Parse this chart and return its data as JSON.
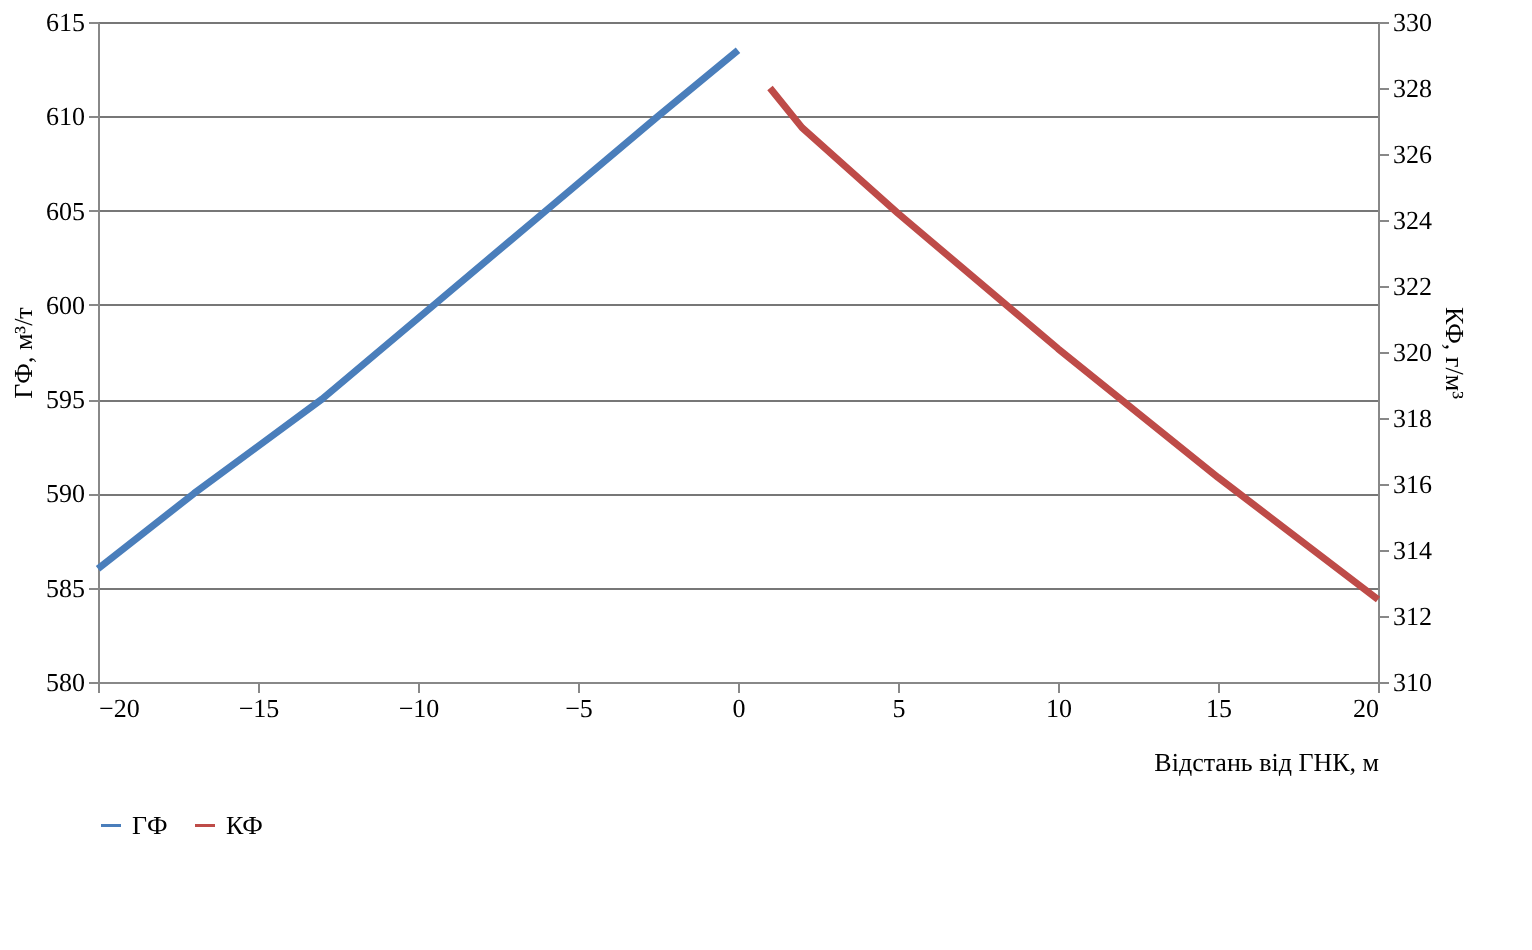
{
  "chart_data": {
    "type": "line",
    "xlabel": "Відстань  від ГНК, м",
    "ylabel": "ГФ, м³/т",
    "y2label": "КФ, г/м³",
    "xlim": [
      -20,
      20
    ],
    "xticks": [
      -20,
      -15,
      -10,
      -5,
      0,
      5,
      10,
      15,
      20
    ],
    "ylim": [
      580,
      615
    ],
    "yticks": [
      580,
      585,
      590,
      595,
      600,
      605,
      610,
      615
    ],
    "y2lim": [
      310,
      330
    ],
    "y2ticks": [
      310,
      312,
      314,
      316,
      318,
      320,
      322,
      324,
      326,
      328,
      330
    ],
    "grid": "y",
    "legend": "bottom",
    "line_style": "solid",
    "marker": "none",
    "series": [
      {
        "name": "ГФ",
        "color": "#4a7ebb",
        "x": [
          -20,
          -17,
          -13,
          -9.5,
          -6,
          -2.5,
          0
        ],
        "values": [
          586,
          590,
          595,
          600,
          605,
          610,
          613.5
        ]
      },
      {
        "name": "КФ",
        "color": "#be4b48",
        "axis": "y2",
        "x": [
          1,
          2,
          5,
          10,
          15,
          20
        ],
        "values": [
          328,
          326.8,
          324.2,
          320.1,
          316.2,
          312.5
        ]
      }
    ]
  }
}
